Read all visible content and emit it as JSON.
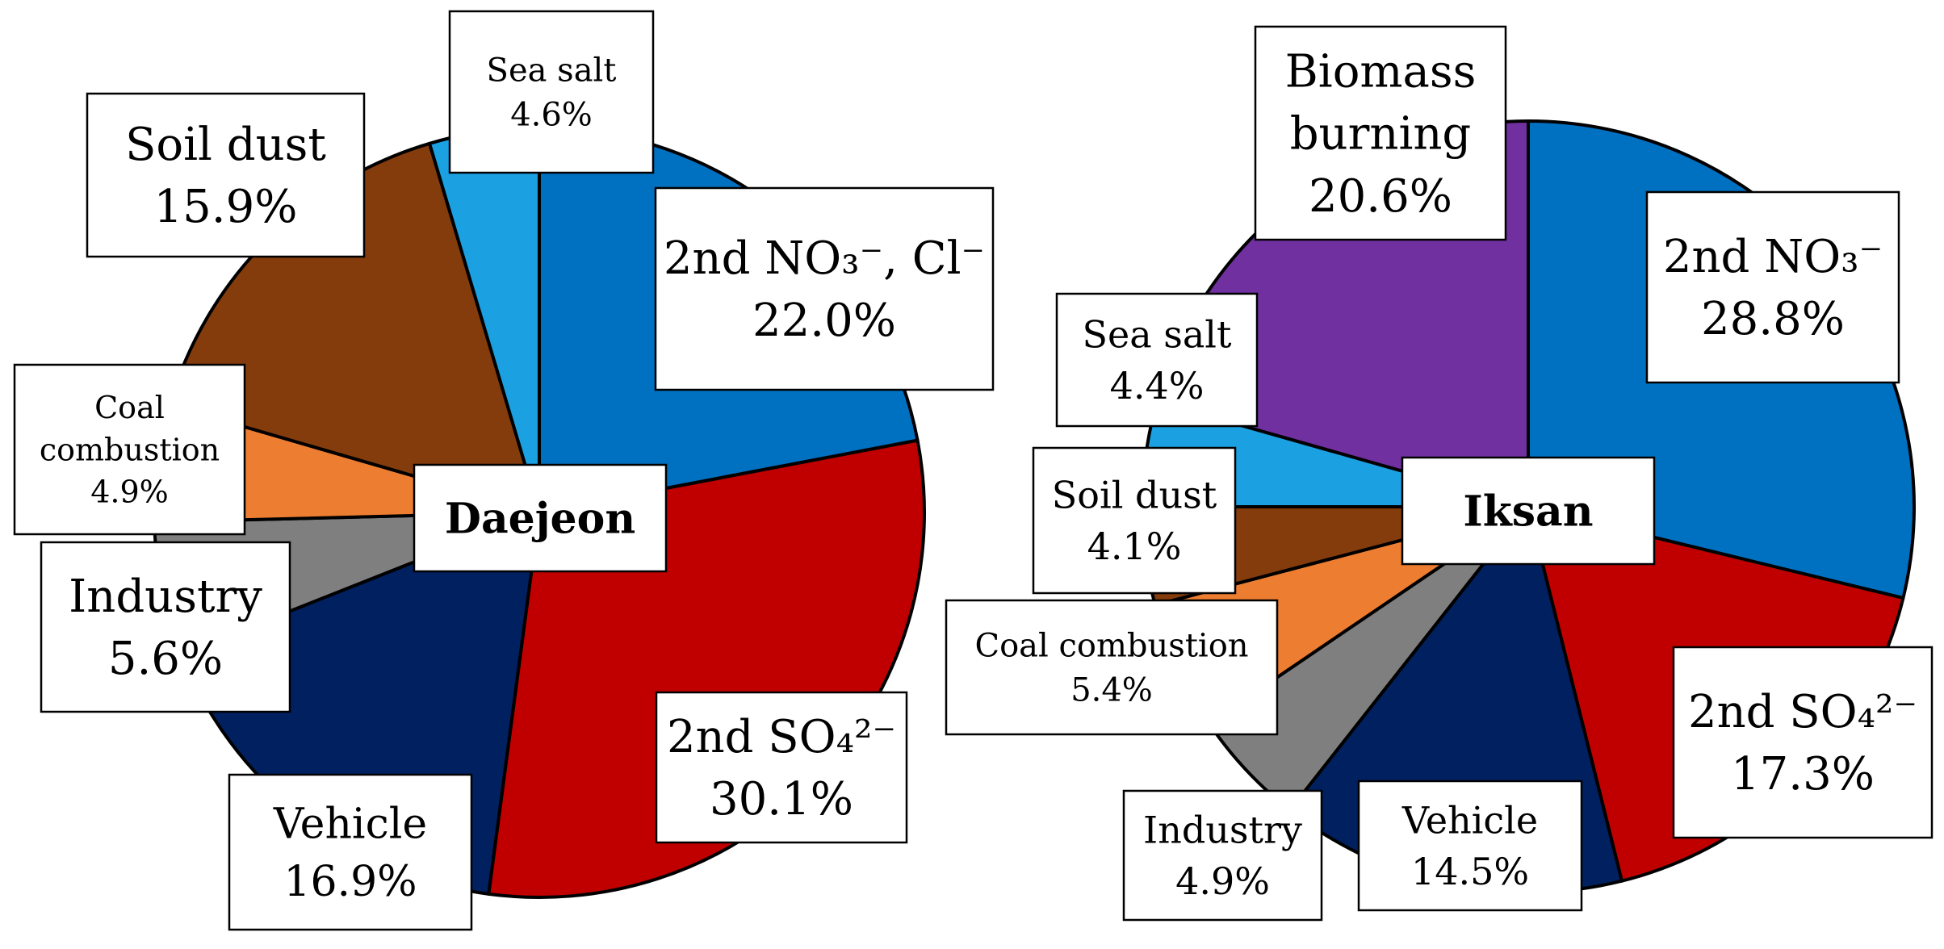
{
  "chart_data": [
    {
      "type": "pie",
      "title": "Daejeon",
      "slices": [
        {
          "label": "2nd NO₃⁻, Cl⁻",
          "value": 22.0,
          "display": "22.0%",
          "color": "#0070C0"
        },
        {
          "label": "2nd SO₄²⁻",
          "value": 30.1,
          "display": "30.1%",
          "color": "#C00000"
        },
        {
          "label": "Vehicle",
          "value": 16.9,
          "display": "16.9%",
          "color": "#002060"
        },
        {
          "label": "Industry",
          "value": 5.6,
          "display": "5.6%",
          "color": "#7F7F7F"
        },
        {
          "label": "Coal combustion",
          "value": 4.9,
          "display": "4.9%",
          "color": "#ED7D31"
        },
        {
          "label": "Soil dust",
          "value": 15.9,
          "display": "15.9%",
          "color": "#843C0C"
        },
        {
          "label": "Sea salt",
          "value": 4.6,
          "display": "4.6%",
          "color": "#1BA1E2"
        }
      ]
    },
    {
      "type": "pie",
      "title": "Iksan",
      "slices": [
        {
          "label": "2nd NO₃⁻",
          "value": 28.8,
          "display": "28.8%",
          "color": "#0070C0"
        },
        {
          "label": "2nd SO₄²⁻",
          "value": 17.3,
          "display": "17.3%",
          "color": "#C00000"
        },
        {
          "label": "Vehicle",
          "value": 14.5,
          "display": "14.5%",
          "color": "#002060"
        },
        {
          "label": "Industry",
          "value": 4.9,
          "display": "4.9%",
          "color": "#7F7F7F"
        },
        {
          "label": "Coal combustion",
          "value": 5.4,
          "display": "5.4%",
          "color": "#ED7D31"
        },
        {
          "label": "Soil dust",
          "value": 4.1,
          "display": "4.1%",
          "color": "#843C0C"
        },
        {
          "label": "Sea salt",
          "value": 4.4,
          "display": "4.4%",
          "color": "#1BA1E2"
        },
        {
          "label": "Biomass burning",
          "value": 20.6,
          "display": "20.6%",
          "color": "#7030A0"
        }
      ]
    }
  ]
}
